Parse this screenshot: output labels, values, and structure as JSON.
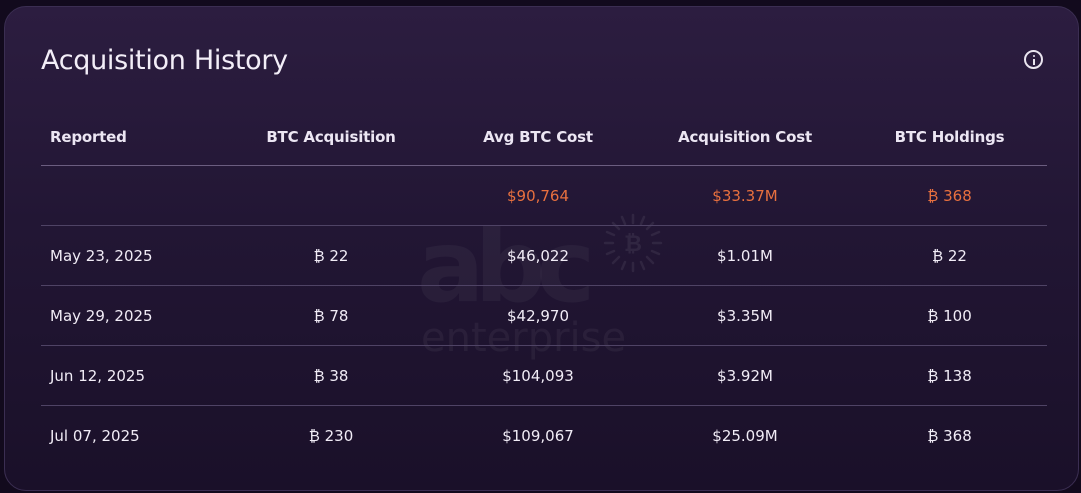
{
  "card": {
    "title": "Acquisition History"
  },
  "watermark": {
    "logo_text": "abc",
    "word": "enterprise"
  },
  "table": {
    "headers": [
      "Reported",
      "BTC Acquisition",
      "Avg BTC Cost",
      "Acquisition Cost",
      "BTC Holdings"
    ],
    "totals": {
      "reported": "",
      "btc_acquisition": "",
      "avg_btc_cost": "$90,764",
      "acquisition_cost": "$33.37M",
      "btc_holdings": "₿ 368"
    },
    "rows": [
      {
        "reported": "May 23, 2025",
        "btc_acquisition": "₿ 22",
        "avg_btc_cost": "$46,022",
        "acquisition_cost": "$1.01M",
        "btc_holdings": "₿ 22"
      },
      {
        "reported": "May 29, 2025",
        "btc_acquisition": "₿ 78",
        "avg_btc_cost": "$42,970",
        "acquisition_cost": "$3.35M",
        "btc_holdings": "₿ 100"
      },
      {
        "reported": "Jun 12, 2025",
        "btc_acquisition": "₿ 38",
        "avg_btc_cost": "$104,093",
        "acquisition_cost": "$3.92M",
        "btc_holdings": "₿ 138"
      },
      {
        "reported": "Jul 07, 2025",
        "btc_acquisition": "₿ 230",
        "avg_btc_cost": "$109,067",
        "acquisition_cost": "$25.09M",
        "btc_holdings": "₿ 368"
      }
    ]
  },
  "colors": {
    "accent_totals": "#e8703f",
    "card_background": "#241738",
    "text_primary": "#f1ecf6"
  },
  "icons": {
    "info": "info-icon"
  }
}
